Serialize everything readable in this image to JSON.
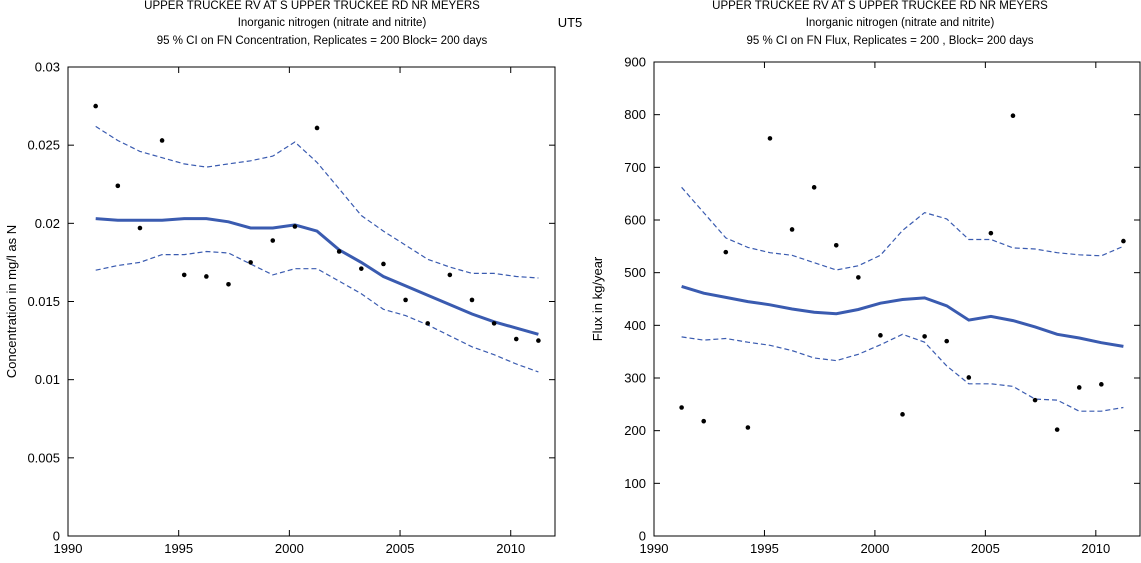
{
  "figure_label": "UT5",
  "chart_data": [
    {
      "type": "line",
      "title_lines": [
        "UPPER TRUCKEE RV AT S UPPER TRUCKEE RD NR MEYERS",
        "Inorganic nitrogen (nitrate and nitrite)",
        "95 % CI on FN Concentration, Replicates = 200 Block= 200 days"
      ],
      "xlabel": "",
      "ylabel": "Concentration in mg/l as N",
      "xlim": [
        1990,
        2012
      ],
      "ylim": [
        0,
        0.03
      ],
      "xticks": [
        1990,
        1995,
        2000,
        2005,
        2010
      ],
      "yticks": [
        0,
        0.005,
        0.01,
        0.015,
        0.02,
        0.025,
        0.03
      ],
      "ytick_labels": [
        "0",
        "0.005",
        "0.01",
        "0.015",
        "0.02",
        "0.025",
        "0.03"
      ],
      "grid": false,
      "colors": {
        "trend": "#3a5bb0",
        "ci": "#3a5bb0",
        "points": "#000000"
      },
      "points": {
        "x": [
          1991.25,
          1992.25,
          1993.25,
          1994.25,
          1995.25,
          1996.25,
          1997.25,
          1998.25,
          1999.25,
          2000.25,
          2001.25,
          2002.25,
          2003.25,
          2004.25,
          2005.25,
          2006.25,
          2007.25,
          2008.25,
          2009.25,
          2010.25,
          2011.25
        ],
        "y": [
          0.0275,
          0.0224,
          0.0197,
          0.0253,
          0.0167,
          0.0166,
          0.0161,
          0.0175,
          0.0189,
          0.0198,
          0.0261,
          0.0182,
          0.0171,
          0.0174,
          0.0151,
          0.0136,
          0.0167,
          0.0151,
          0.0136,
          0.0126,
          0.0125
        ]
      },
      "series": [
        {
          "role": "flow-normalized",
          "style": "solid",
          "x": [
            1991.25,
            1992.25,
            1993.25,
            1994.25,
            1995.25,
            1996.25,
            1997.25,
            1998.25,
            1999.25,
            2000.25,
            2001.25,
            2002.25,
            2003.25,
            2004.25,
            2005.25,
            2006.25,
            2007.25,
            2008.25,
            2009.25,
            2010.25,
            2011.25
          ],
          "y": [
            0.0203,
            0.0202,
            0.0202,
            0.0202,
            0.0203,
            0.0203,
            0.0201,
            0.0197,
            0.0197,
            0.0199,
            0.0195,
            0.0183,
            0.0175,
            0.0166,
            0.016,
            0.0154,
            0.0148,
            0.0142,
            0.0137,
            0.0133,
            0.0129
          ]
        },
        {
          "role": "ci-upper",
          "style": "dashed",
          "x": [
            1991.25,
            1992.25,
            1993.25,
            1994.25,
            1995.25,
            1996.25,
            1997.25,
            1998.25,
            1999.25,
            2000.25,
            2001.25,
            2002.25,
            2003.25,
            2004.25,
            2005.25,
            2006.25,
            2007.25,
            2008.25,
            2009.25,
            2010.25,
            2011.25
          ],
          "y": [
            0.0262,
            0.0253,
            0.0246,
            0.0242,
            0.0238,
            0.0236,
            0.0238,
            0.024,
            0.0243,
            0.0252,
            0.0239,
            0.0222,
            0.0205,
            0.0195,
            0.0186,
            0.0177,
            0.0172,
            0.0168,
            0.0168,
            0.0166,
            0.0165
          ]
        },
        {
          "role": "ci-lower",
          "style": "dashed",
          "x": [
            1991.25,
            1992.25,
            1993.25,
            1994.25,
            1995.25,
            1996.25,
            1997.25,
            1998.25,
            1999.25,
            2000.25,
            2001.25,
            2002.25,
            2003.25,
            2004.25,
            2005.25,
            2006.25,
            2007.25,
            2008.25,
            2009.25,
            2010.25,
            2011.25
          ],
          "y": [
            0.017,
            0.0173,
            0.0175,
            0.018,
            0.018,
            0.0182,
            0.0181,
            0.0174,
            0.0167,
            0.0171,
            0.0171,
            0.0163,
            0.0155,
            0.0145,
            0.0141,
            0.0135,
            0.0128,
            0.0121,
            0.0116,
            0.011,
            0.0105
          ]
        }
      ]
    },
    {
      "type": "line",
      "title_lines": [
        "UPPER TRUCKEE RV AT S UPPER TRUCKEE RD NR MEYERS",
        "Inorganic nitrogen (nitrate and nitrite)",
        "95 % CI on FN Flux, Replicates = 200 , Block= 200 days"
      ],
      "xlabel": "",
      "ylabel": "Flux in kg/year",
      "xlim": [
        1990,
        2012
      ],
      "ylim": [
        0,
        900
      ],
      "xticks": [
        1990,
        1995,
        2000,
        2005,
        2010
      ],
      "yticks": [
        0,
        100,
        200,
        300,
        400,
        500,
        600,
        700,
        800,
        900
      ],
      "ytick_labels": [
        "0",
        "100",
        "200",
        "300",
        "400",
        "500",
        "600",
        "700",
        "800",
        "900"
      ],
      "grid": false,
      "colors": {
        "trend": "#3a5bb0",
        "ci": "#3a5bb0",
        "points": "#000000"
      },
      "points": {
        "x": [
          1991.25,
          1992.25,
          1993.25,
          1994.25,
          1995.25,
          1996.25,
          1997.25,
          1998.25,
          1999.25,
          2000.25,
          2001.25,
          2002.25,
          2003.25,
          2004.25,
          2005.25,
          2006.25,
          2007.25,
          2008.25,
          2009.25,
          2010.25,
          2011.25
        ],
        "y": [
          244,
          218,
          539,
          206,
          755,
          582,
          662,
          552,
          491,
          381,
          231,
          379,
          370,
          301,
          575,
          798,
          258,
          202,
          282,
          288,
          560
        ]
      },
      "series": [
        {
          "role": "flow-normalized",
          "style": "solid",
          "x": [
            1991.25,
            1992.25,
            1993.25,
            1994.25,
            1995.25,
            1996.25,
            1997.25,
            1998.25,
            1999.25,
            2000.25,
            2001.25,
            2002.25,
            2003.25,
            2004.25,
            2005.25,
            2006.25,
            2007.25,
            2008.25,
            2009.25,
            2010.25,
            2011.25
          ],
          "y": [
            474,
            461,
            453,
            445,
            439,
            431,
            425,
            422,
            430,
            442,
            449,
            452,
            437,
            410,
            417,
            409,
            397,
            383,
            376,
            367,
            360
          ]
        },
        {
          "role": "ci-upper",
          "style": "dashed",
          "x": [
            1991.25,
            1992.25,
            1993.25,
            1994.25,
            1995.25,
            1996.25,
            1997.25,
            1998.25,
            1999.25,
            2000.25,
            2001.25,
            2002.25,
            2003.25,
            2004.25,
            2005.25,
            2006.25,
            2007.25,
            2008.25,
            2009.25,
            2010.25,
            2011.25
          ],
          "y": [
            662,
            614,
            566,
            548,
            538,
            533,
            519,
            505,
            513,
            533,
            580,
            614,
            602,
            563,
            563,
            547,
            545,
            538,
            534,
            532,
            550
          ]
        },
        {
          "role": "ci-lower",
          "style": "dashed",
          "x": [
            1991.25,
            1992.25,
            1993.25,
            1994.25,
            1995.25,
            1996.25,
            1997.25,
            1998.25,
            1999.25,
            2000.25,
            2001.25,
            2002.25,
            2003.25,
            2004.25,
            2005.25,
            2006.25,
            2007.25,
            2008.25,
            2009.25,
            2010.25,
            2011.25
          ],
          "y": [
            378,
            372,
            375,
            368,
            362,
            352,
            338,
            333,
            345,
            363,
            383,
            368,
            323,
            289,
            289,
            284,
            260,
            258,
            237,
            237,
            244
          ]
        }
      ]
    }
  ]
}
